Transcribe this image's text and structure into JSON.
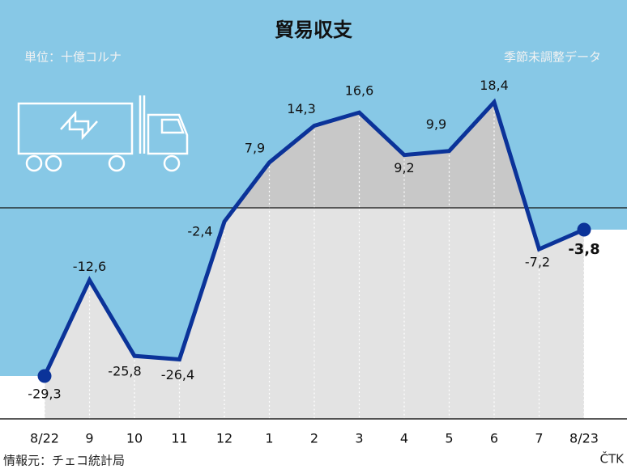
{
  "chart_data": {
    "type": "line",
    "title": "貿易収支",
    "unit_note": "単位：十億コルナ",
    "adjustment_note": "季節未調整データ",
    "source": "情報元：チェコ統計局",
    "credit": "ČTK",
    "categories": [
      "8/22",
      "9",
      "10",
      "11",
      "12",
      "1",
      "2",
      "3",
      "4",
      "5",
      "6",
      "7",
      "8/23"
    ],
    "values": [
      -29.3,
      -12.6,
      -25.8,
      -26.4,
      -2.4,
      7.9,
      14.3,
      16.6,
      9.2,
      9.9,
      18.4,
      -7.2,
      -3.8
    ],
    "value_labels": [
      "-29,3",
      "-12,6",
      "-25,8",
      "-26,4",
      "-2,4",
      "7,9",
      "14,3",
      "16,6",
      "9,2",
      "9,9",
      "18,4",
      "-7,2",
      "-3,8"
    ],
    "color": "#0b3399",
    "ylim": [
      -36,
      36
    ]
  }
}
